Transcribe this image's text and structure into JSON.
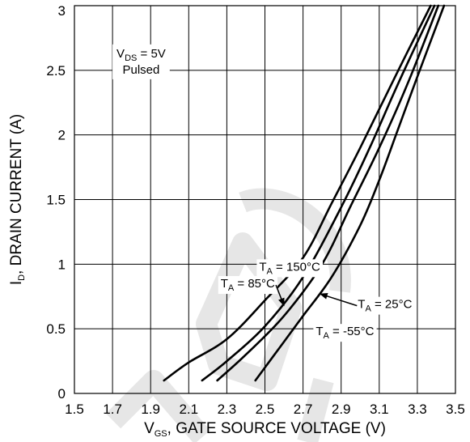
{
  "chart_data": {
    "type": "line",
    "xlabel_parts": [
      "V",
      "GS",
      ", GATE SOURCE VOLTAGE (V)"
    ],
    "ylabel_parts": [
      "I",
      "D",
      ", DRAIN CURRENT (A)"
    ],
    "xlim": [
      1.5,
      3.5
    ],
    "ylim": [
      0,
      3
    ],
    "x_ticks": [
      "1.5",
      "1.7",
      "1.9",
      "2.1",
      "2.3",
      "2.5",
      "2.7",
      "2.9",
      "3.1",
      "3.3",
      "3.5"
    ],
    "y_ticks": [
      "0",
      "0.5",
      "1",
      "1.5",
      "2",
      "2.5",
      "3"
    ],
    "grid": true,
    "conditions": {
      "line1_parts": [
        "V",
        "DS",
        " = 5V"
      ],
      "line2": "Pulsed"
    },
    "series": [
      {
        "name_parts": [
          "T",
          "A",
          " = 150°C"
        ],
        "x": [
          1.97,
          2.1,
          2.3,
          2.5,
          2.7,
          2.85,
          3.0,
          3.2,
          3.37
        ],
        "y": [
          0.1,
          0.24,
          0.42,
          0.72,
          1.05,
          1.47,
          1.9,
          2.5,
          3.0
        ]
      },
      {
        "name_parts": [
          "T",
          "A",
          " = 85°C"
        ],
        "x": [
          2.17,
          2.3,
          2.5,
          2.7,
          2.9,
          3.05,
          3.2,
          3.39
        ],
        "y": [
          0.1,
          0.25,
          0.52,
          0.9,
          1.44,
          1.9,
          2.4,
          3.0
        ]
      },
      {
        "name_parts": [
          "T",
          "A",
          " = 25°C"
        ],
        "x": [
          2.25,
          2.4,
          2.6,
          2.8,
          2.95,
          3.1,
          3.25,
          3.41
        ],
        "y": [
          0.1,
          0.3,
          0.6,
          1.0,
          1.45,
          1.9,
          2.4,
          3.0
        ]
      },
      {
        "name_parts": [
          "T",
          "A",
          " = -55°C"
        ],
        "x": [
          2.45,
          2.6,
          2.7,
          2.85,
          3.0,
          3.1,
          3.2,
          3.3,
          3.44
        ],
        "y": [
          0.1,
          0.4,
          0.6,
          0.9,
          1.3,
          1.65,
          2.05,
          2.45,
          3.0
        ]
      }
    ],
    "labels": [
      {
        "series": 0,
        "tx": 2.63,
        "ty": 0.95
      },
      {
        "series": 1,
        "tx": 2.41,
        "ty": 0.82,
        "arrow_to": [
          2.6,
          0.68
        ]
      },
      {
        "series": 2,
        "tx": 3.13,
        "ty": 0.66,
        "arrow_to": [
          2.79,
          0.77
        ]
      },
      {
        "series": 3,
        "tx": 2.92,
        "ty": 0.45
      }
    ]
  }
}
